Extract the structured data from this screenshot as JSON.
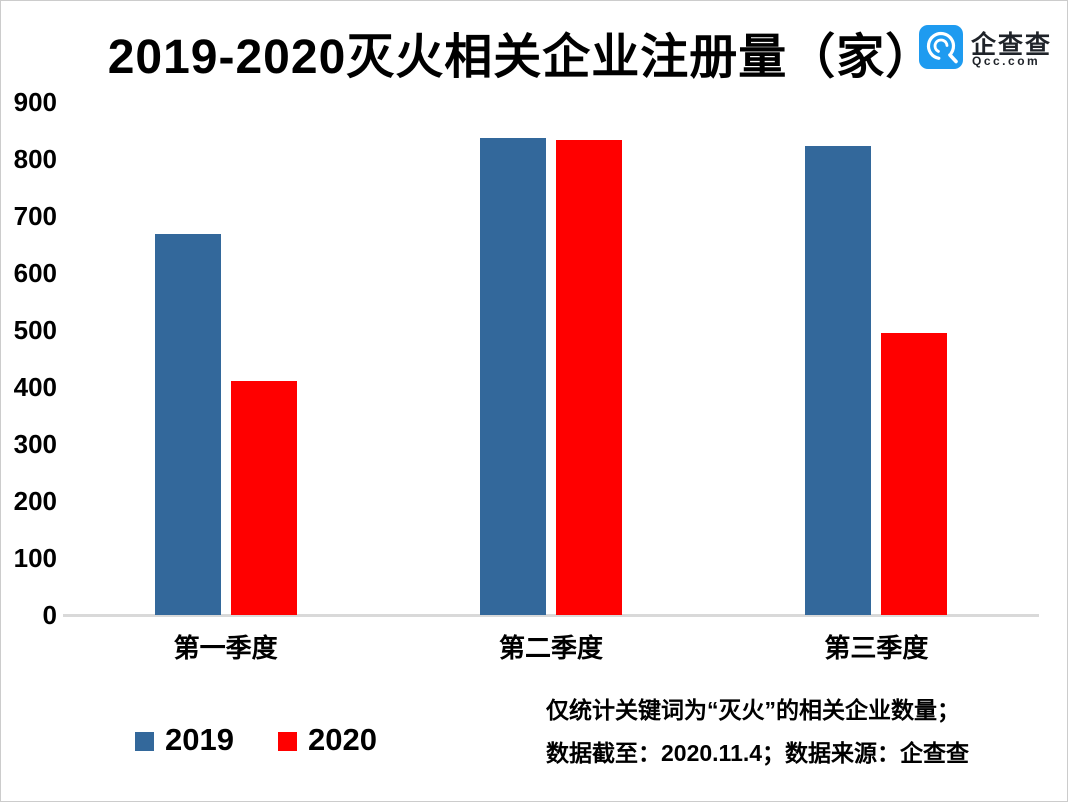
{
  "title": "2019-2020灭火相关企业注册量（家）",
  "logo": {
    "name": "企查查",
    "domain": "Qcc.com",
    "blue": "#1e9bf0"
  },
  "chart_data": {
    "type": "bar",
    "title": "2019-2020灭火相关企业注册量（家）",
    "categories": [
      "第一季度",
      "第二季度",
      "第三季度"
    ],
    "series": [
      {
        "name": "2019",
        "color": "#33689b",
        "values": [
          669,
          837,
          823
        ]
      },
      {
        "name": "2020",
        "color": "#ff0000",
        "values": [
          410,
          833,
          495
        ]
      }
    ],
    "ylim": [
      0,
      900
    ],
    "ytick_labels": [
      "900",
      "800",
      "700",
      "600",
      "500",
      "400",
      "300",
      "200",
      "100",
      "0"
    ],
    "grid": false,
    "legend_position": "bottom-left",
    "axis_line_color": "#d9d9d9",
    "xlabel": "",
    "ylabel": ""
  },
  "footnotes": {
    "line1": "仅统计关键词为“灭火”的相关企业数量；",
    "line2": "数据截至：2020.11.4；数据来源：企查查"
  }
}
